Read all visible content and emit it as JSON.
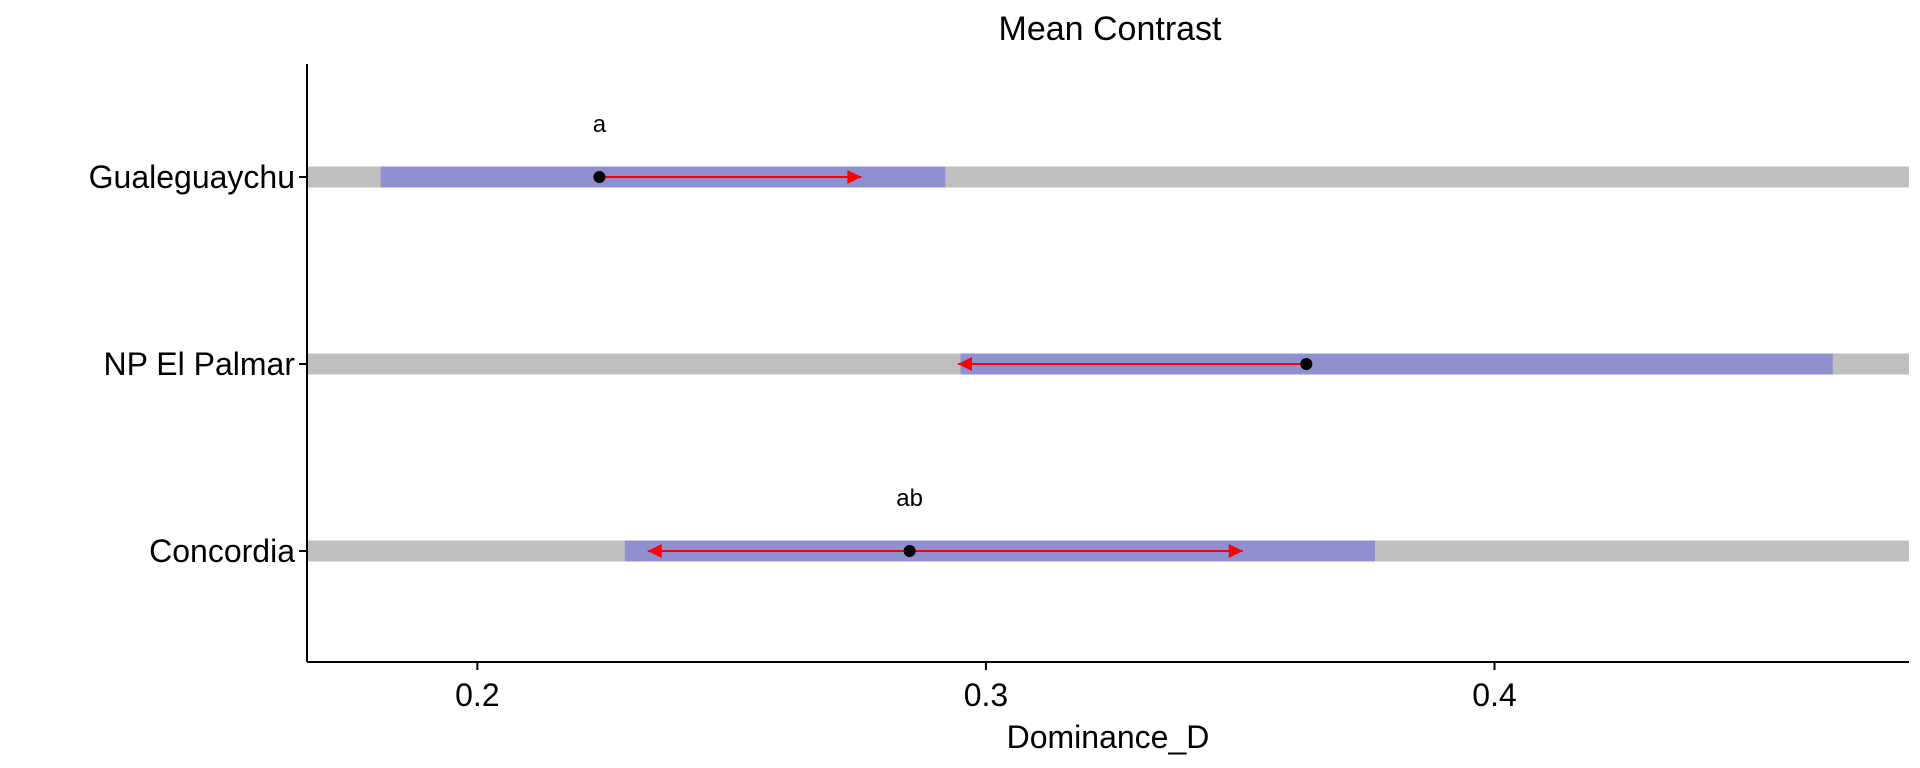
{
  "chart_data": {
    "type": "interval",
    "title": "Mean Contrast",
    "xlabel": "Dominance_D",
    "ylabel": "",
    "xlim": [
      0.1665,
      0.4815
    ],
    "x_ticks": [
      0.2,
      0.3,
      0.4
    ],
    "x_tick_labels": [
      "0.2",
      "0.3",
      "0.4"
    ],
    "categories": [
      "Gualeguaychu",
      "NP El Palmar",
      "Concordia"
    ],
    "rows": [
      {
        "category": "Gualeguaychu",
        "bar_start": 0.1665,
        "bar_end": 0.4815,
        "ci_low": 0.181,
        "ci_high": 0.292,
        "mean": 0.224,
        "arrow_to": 0.2755,
        "letter": "a"
      },
      {
        "category": "NP El Palmar",
        "bar_start": 0.1665,
        "bar_end": 0.4815,
        "ci_low": 0.295,
        "ci_high": 0.4665,
        "mean": 0.363,
        "arrow_to": 0.2945,
        "letter": ""
      },
      {
        "category": "Concordia",
        "bar_start": 0.1665,
        "bar_end": 0.4815,
        "ci_low": 0.229,
        "ci_high": 0.3765,
        "mean": 0.285,
        "arrow_to": [
          0.2335,
          0.3505
        ],
        "letter": "ab"
      }
    ],
    "colors": {
      "background_bar": "#bfbfbf",
      "interval_bar": "#9090d0",
      "arrow": "#ff0000",
      "point": "#000000",
      "axis": "#000000"
    },
    "grid": false,
    "legend": "none"
  }
}
